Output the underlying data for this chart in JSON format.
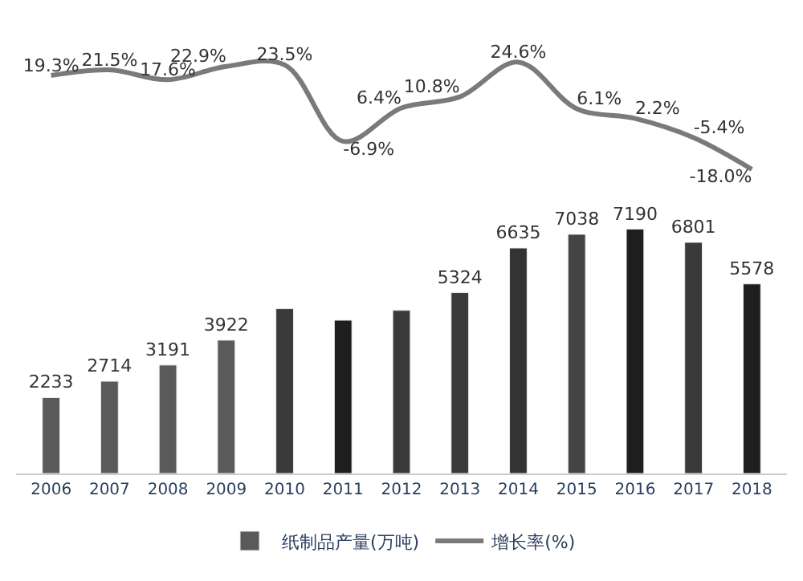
{
  "chart_data": [
    {
      "type": "line",
      "categories": [
        "2006",
        "2007",
        "2008",
        "2009",
        "2010",
        "2011",
        "2012",
        "2013",
        "2014",
        "2015",
        "2016",
        "2017",
        "2018"
      ],
      "tick_labels": false,
      "legend": "bottom",
      "marker": "none",
      "series": [
        {
          "name": "增长率(%)",
          "color": "#7a7a7a",
          "values": [
            19.3,
            21.5,
            17.6,
            22.9,
            23.5,
            -6.9,
            6.4,
            10.8,
            24.6,
            6.1,
            2.2,
            -5.4,
            -18.0
          ],
          "value_labels": [
            "19.3%",
            "21.5%",
            "17.6%",
            "22.9%",
            "23.5%",
            "-6.9%",
            "6.4%",
            "10.8%",
            "24.6%",
            "6.1%",
            "2.2%",
            "-5.4%",
            "-18.0%"
          ]
        }
      ]
    },
    {
      "type": "bar",
      "categories": [
        "2006",
        "2007",
        "2008",
        "2009",
        "2010",
        "2011",
        "2012",
        "2013",
        "2014",
        "2015",
        "2016",
        "2017",
        "2018"
      ],
      "tick_labels": "x",
      "legend": "bottom",
      "series": [
        {
          "name": "纸制品产量(万吨)",
          "colors": [
            "#5a5a5a",
            "#5a5a5a",
            "#5a5a5a",
            "#5a5a5a",
            "#3a3a3a",
            "#1e1e1e",
            "#3a3a3a",
            "#3a3a3a",
            "#333333",
            "#444444",
            "#1e1e1e",
            "#3a3a3a",
            "#1e1e1e"
          ],
          "values": [
            2233,
            2714,
            3191,
            3922,
            4850,
            4510,
            4800,
            5324,
            6635,
            7038,
            7190,
            6801,
            5578
          ],
          "value_labels": [
            "2233",
            "2714",
            "3191",
            "3922",
            null,
            null,
            null,
            "5324",
            "6635",
            "7038",
            "7190",
            "6801",
            "5578"
          ]
        }
      ]
    }
  ]
}
